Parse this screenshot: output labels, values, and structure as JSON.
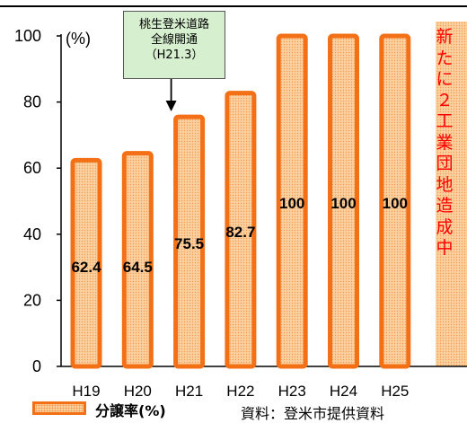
{
  "chart_data": {
    "type": "bar",
    "categories": [
      "H19",
      "H20",
      "H21",
      "H22",
      "H23",
      "H24",
      "H25"
    ],
    "values": [
      62.4,
      64.5,
      75.5,
      82.7,
      100,
      100,
      100
    ],
    "data_labels": [
      "62.4",
      "64.5",
      "75.5",
      "82.7",
      "100",
      "100",
      "100"
    ],
    "ylim": [
      0,
      100
    ],
    "yticks": [
      0,
      20,
      40,
      60,
      80,
      100
    ],
    "ylabel_unit": "(%)",
    "grid": false,
    "series": [
      {
        "name": "分譲率(%)",
        "values": [
          62.4,
          64.5,
          75.5,
          82.7,
          100,
          100,
          100
        ]
      }
    ],
    "legend_placement": "bottom-left",
    "bar_fill_color": "#fbd09f",
    "bar_edge_color": "#f37016",
    "placeholder_column": {
      "position": "after H25",
      "text_chars": [
        "新",
        "た",
        "に",
        "２",
        "工",
        "業",
        "団",
        "地",
        "造",
        "成",
        "中"
      ],
      "text_color": "#ff0000"
    }
  },
  "annotation": {
    "lines": [
      "桃生登米道路",
      "全線開通",
      "（H21.3）"
    ],
    "points_to": "H21",
    "box_color": "#d6f0cf"
  },
  "legend": {
    "label": "分譲率(%)"
  },
  "source": "資料：登米市提供資料"
}
